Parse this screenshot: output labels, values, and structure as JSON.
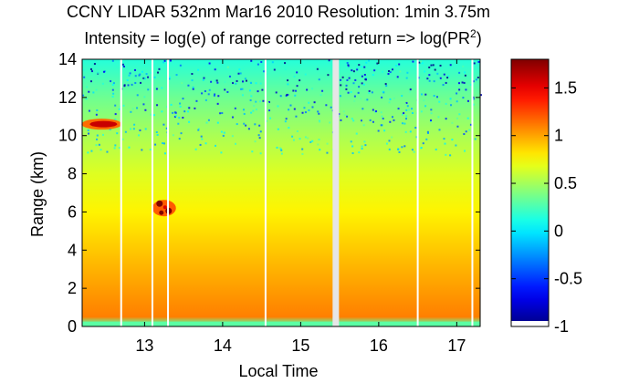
{
  "chart_data": {
    "type": "heatmap",
    "title": "CCNY LIDAR 532nm Mar16 2010 Resolution: 1min 3.75m",
    "subtitle_prefix": "Intensity = log(e) of range corrected return => log(PR",
    "subtitle_superscript": "2",
    "subtitle_suffix": ")",
    "xlabel": "Local Time",
    "ylabel": "Range (km)",
    "xlim": [
      12.2,
      17.3
    ],
    "ylim": [
      0,
      14
    ],
    "xticks": [
      13,
      14,
      15,
      16,
      17
    ],
    "yticks": [
      0,
      2,
      4,
      6,
      8,
      10,
      12,
      14
    ],
    "colorbar": {
      "colormap": "jet",
      "range": [
        -1,
        1.8
      ],
      "ticks": [
        1.5,
        1,
        0.5,
        0,
        -0.5,
        -1
      ],
      "tick_labels": [
        "1.5",
        "1",
        "0.5",
        "0",
        "-0.5",
        "-1"
      ]
    },
    "background_profile": [
      {
        "range_km": 0.15,
        "value": 0.3
      },
      {
        "range_km": 0.5,
        "value": 1.1
      },
      {
        "range_km": 2,
        "value": 1.02
      },
      {
        "range_km": 4,
        "value": 0.9
      },
      {
        "range_km": 6,
        "value": 0.78
      },
      {
        "range_km": 8,
        "value": 0.66
      },
      {
        "range_km": 10,
        "value": 0.52
      },
      {
        "range_km": 12,
        "value": 0.35
      },
      {
        "range_km": 14,
        "value": 0.15
      }
    ],
    "features": [
      {
        "time": 12.45,
        "range_km": 10.6,
        "value": 1.6
      },
      {
        "time": 13.25,
        "range_km": 6.2,
        "value": 1.8
      }
    ],
    "data_gaps": [
      12.7,
      13.1,
      13.3,
      14.55,
      15.45,
      16.5,
      17.2
    ]
  }
}
